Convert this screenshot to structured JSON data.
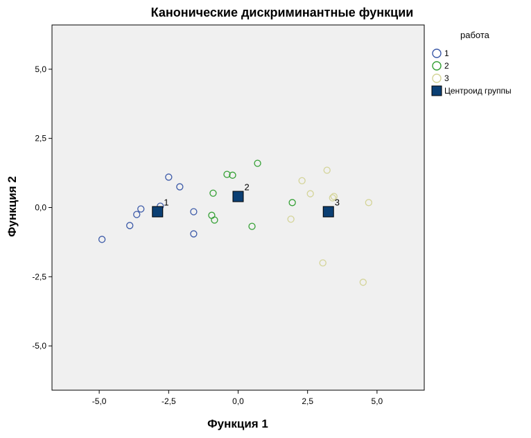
{
  "chart_data": {
    "type": "scatter",
    "title": "Канонические дискриминантные функции",
    "xlabel": "Функция 1",
    "ylabel": "Функция 2",
    "xlim": [
      -6.7,
      6.7
    ],
    "ylim": [
      -6.6,
      6.6
    ],
    "xticks": [
      -5.0,
      -2.5,
      0.0,
      2.5,
      5.0
    ],
    "xtick_labels": [
      "-5,0",
      "-2,5",
      "0,0",
      "2,5",
      "5,0"
    ],
    "yticks": [
      -5.0,
      -2.5,
      0.0,
      2.5,
      5.0
    ],
    "ytick_labels": [
      "-5,0",
      "-2,5",
      "0,0",
      "2,5",
      "5,0"
    ],
    "grid": false,
    "background": "#f0f0f0",
    "legend": {
      "title": "работа",
      "position": "right",
      "entries": [
        {
          "label": "1",
          "marker": "circle",
          "color": "#3c5aa8"
        },
        {
          "label": "2",
          "marker": "circle",
          "color": "#34a034"
        },
        {
          "label": "3",
          "marker": "circle",
          "color": "#d4d498"
        },
        {
          "label": "Центроид группы",
          "marker": "square",
          "color": "#0b3f73"
        }
      ]
    },
    "series": [
      {
        "name": "1",
        "color": "#3c5aa8",
        "points": [
          {
            "x": -4.9,
            "y": -1.15
          },
          {
            "x": -3.9,
            "y": -0.65
          },
          {
            "x": -3.65,
            "y": -0.25
          },
          {
            "x": -3.5,
            "y": -0.05
          },
          {
            "x": -2.5,
            "y": 1.1
          },
          {
            "x": -2.1,
            "y": 0.75
          },
          {
            "x": -2.8,
            "y": 0.05
          },
          {
            "x": -1.6,
            "y": -0.15
          },
          {
            "x": -1.6,
            "y": -0.95
          }
        ]
      },
      {
        "name": "2",
        "color": "#34a034",
        "points": [
          {
            "x": -0.4,
            "y": 1.2
          },
          {
            "x": -0.2,
            "y": 1.17
          },
          {
            "x": 0.7,
            "y": 1.6
          },
          {
            "x": -0.9,
            "y": 0.52
          },
          {
            "x": -0.95,
            "y": -0.28
          },
          {
            "x": -0.85,
            "y": -0.45
          },
          {
            "x": 0.5,
            "y": -0.68
          },
          {
            "x": 1.95,
            "y": 0.18
          }
        ]
      },
      {
        "name": "3",
        "color": "#d4d498",
        "points": [
          {
            "x": 2.3,
            "y": 0.97
          },
          {
            "x": 3.2,
            "y": 1.35
          },
          {
            "x": 2.6,
            "y": 0.5
          },
          {
            "x": 3.4,
            "y": 0.35
          },
          {
            "x": 3.45,
            "y": 0.4
          },
          {
            "x": 4.7,
            "y": 0.18
          },
          {
            "x": 1.9,
            "y": -0.42
          },
          {
            "x": 3.05,
            "y": -2.0
          },
          {
            "x": 4.5,
            "y": -2.7
          }
        ]
      }
    ],
    "centroids": [
      {
        "label": "1",
        "x": -2.9,
        "y": -0.15
      },
      {
        "label": "2",
        "x": 0.0,
        "y": 0.4
      },
      {
        "label": "3",
        "x": 3.25,
        "y": -0.15
      }
    ]
  }
}
